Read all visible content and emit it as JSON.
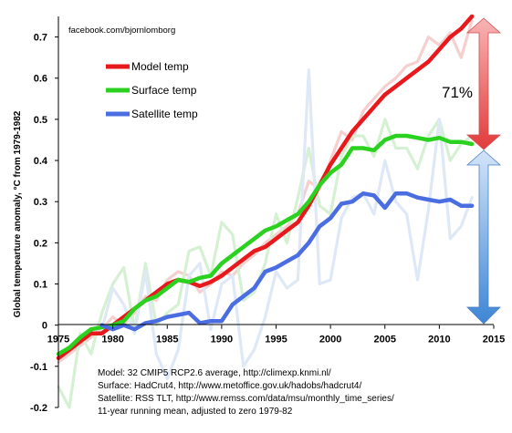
{
  "chart_data": {
    "type": "line",
    "title": "",
    "ylabel": "Global tempearture anomaly, °C from 1979-1982",
    "xlim": [
      1975,
      2015
    ],
    "ylim": [
      -0.2,
      0.75
    ],
    "xticks": [
      1975,
      1980,
      1985,
      1990,
      1995,
      2000,
      2005,
      2010,
      2015
    ],
    "yticks": [
      -0.2,
      -0.1,
      0,
      0.1,
      0.2,
      0.3,
      0.4,
      0.5,
      0.6,
      0.7
    ],
    "ytick_labels": [
      "-0.2",
      "-0.1",
      "0",
      "0.1",
      "0.2",
      "0.3",
      "0.4",
      "0.5",
      "0.6",
      "0.7"
    ],
    "xtick_labels": [
      "1975",
      "1980",
      "1985",
      "1990",
      "1995",
      "2000",
      "2005",
      "2010",
      "2015"
    ],
    "legend_position": "top-left",
    "series": [
      {
        "name": "Model temp",
        "color": "#e8191c",
        "x": [
          1975,
          1976,
          1977,
          1978,
          1979,
          1980,
          1981,
          1982,
          1983,
          1984,
          1985,
          1986,
          1987,
          1988,
          1989,
          1990,
          1991,
          1992,
          1993,
          1994,
          1995,
          1996,
          1997,
          1998,
          1999,
          2000,
          2001,
          2002,
          2003,
          2004,
          2005,
          2006,
          2007,
          2008,
          2009,
          2010,
          2011,
          2012,
          2013
        ],
        "y": [
          -0.08,
          -0.06,
          -0.04,
          -0.02,
          -0.02,
          0.0,
          0.02,
          0.04,
          0.06,
          0.08,
          0.1,
          0.11,
          0.105,
          0.095,
          0.105,
          0.12,
          0.14,
          0.16,
          0.18,
          0.19,
          0.21,
          0.23,
          0.25,
          0.29,
          0.34,
          0.39,
          0.43,
          0.47,
          0.5,
          0.53,
          0.56,
          0.58,
          0.6,
          0.62,
          0.64,
          0.67,
          0.7,
          0.72,
          0.75
        ]
      },
      {
        "name": "Surface temp",
        "color": "#2ad21f",
        "x": [
          1975,
          1976,
          1977,
          1978,
          1979,
          1980,
          1981,
          1982,
          1983,
          1984,
          1985,
          1986,
          1987,
          1988,
          1989,
          1990,
          1991,
          1992,
          1993,
          1994,
          1995,
          1996,
          1997,
          1998,
          1999,
          2000,
          2001,
          2002,
          2003,
          2004,
          2005,
          2006,
          2007,
          2008,
          2009,
          2010,
          2011,
          2012,
          2013
        ],
        "y": [
          -0.07,
          -0.055,
          -0.03,
          -0.01,
          -0.005,
          0.0,
          0.01,
          0.04,
          0.06,
          0.07,
          0.09,
          0.11,
          0.105,
          0.115,
          0.12,
          0.15,
          0.17,
          0.19,
          0.21,
          0.23,
          0.24,
          0.255,
          0.27,
          0.3,
          0.34,
          0.37,
          0.39,
          0.43,
          0.43,
          0.425,
          0.45,
          0.46,
          0.46,
          0.455,
          0.45,
          0.455,
          0.445,
          0.445,
          0.44
        ]
      },
      {
        "name": "Satellite temp",
        "color": "#4a6de2",
        "x": [
          1979,
          1980,
          1981,
          1982,
          1983,
          1984,
          1985,
          1986,
          1987,
          1988,
          1989,
          1990,
          1991,
          1992,
          1993,
          1994,
          1995,
          1996,
          1997,
          1998,
          1999,
          2000,
          2001,
          2002,
          2003,
          2004,
          2005,
          2006,
          2007,
          2008,
          2009,
          2010,
          2011,
          2012,
          2013
        ],
        "y": [
          0.0,
          -0.01,
          0.0,
          -0.01,
          0.005,
          0.01,
          0.02,
          0.025,
          0.03,
          0.005,
          0.01,
          0.01,
          0.05,
          0.07,
          0.09,
          0.13,
          0.14,
          0.155,
          0.17,
          0.2,
          0.24,
          0.26,
          0.295,
          0.3,
          0.32,
          0.315,
          0.285,
          0.32,
          0.32,
          0.31,
          0.305,
          0.3,
          0.305,
          0.29,
          0.29
        ]
      }
    ],
    "background_series": [
      {
        "name": "Model annual",
        "color": "#f6cfcf",
        "x": [
          1975,
          1976,
          1977,
          1978,
          1979,
          1980,
          1981,
          1982,
          1983,
          1984,
          1985,
          1986,
          1987,
          1988,
          1989,
          1990,
          1991,
          1992,
          1993,
          1994,
          1995,
          1996,
          1997,
          1998,
          1999,
          2000,
          2001,
          2002,
          2003,
          2004,
          2005,
          2006,
          2007,
          2008,
          2009,
          2010,
          2011,
          2012,
          2013
        ],
        "y": [
          -0.09,
          -0.07,
          -0.05,
          -0.03,
          -0.01,
          0.02,
          0.0,
          0.03,
          0.07,
          0.06,
          0.11,
          0.13,
          0.12,
          0.08,
          0.1,
          0.13,
          0.12,
          0.15,
          0.17,
          0.2,
          0.22,
          0.24,
          0.27,
          0.35,
          0.33,
          0.4,
          0.47,
          0.45,
          0.52,
          0.55,
          0.58,
          0.6,
          0.63,
          0.64,
          0.7,
          0.68,
          0.71,
          0.65,
          0.74
        ]
      },
      {
        "name": "Surface annual",
        "color": "#d5f0d2",
        "x": [
          1975,
          1976,
          1977,
          1978,
          1979,
          1980,
          1981,
          1982,
          1983,
          1984,
          1985,
          1986,
          1987,
          1988,
          1989,
          1990,
          1991,
          1992,
          1993,
          1994,
          1995,
          1996,
          1997,
          1998,
          1999,
          2000,
          2001,
          2002,
          2003,
          2004,
          2005,
          2006,
          2007,
          2008,
          2009,
          2010,
          2011,
          2012,
          2013
        ],
        "y": [
          -0.15,
          -0.2,
          -0.02,
          -0.07,
          0.03,
          0.1,
          0.14,
          -0.01,
          0.15,
          0.0,
          0.03,
          0.05,
          0.18,
          0.19,
          0.12,
          0.25,
          0.22,
          0.06,
          0.08,
          0.15,
          0.27,
          0.2,
          0.31,
          0.43,
          0.29,
          0.27,
          0.41,
          0.46,
          0.46,
          0.41,
          0.5,
          0.43,
          0.43,
          0.38,
          0.46,
          0.5,
          0.4,
          0.44,
          0.46
        ]
      },
      {
        "name": "Satellite annual",
        "color": "#dfe8f6",
        "x": [
          1979,
          1980,
          1981,
          1982,
          1983,
          1984,
          1985,
          1986,
          1987,
          1988,
          1989,
          1990,
          1991,
          1992,
          1993,
          1994,
          1995,
          1996,
          1997,
          1998,
          1999,
          2000,
          2001,
          2002,
          2003,
          2004,
          2005,
          2006,
          2007,
          2008,
          2009,
          2010,
          2011,
          2012,
          2013
        ],
        "y": [
          -0.01,
          0.09,
          0.05,
          -0.02,
          0.13,
          -0.07,
          -0.13,
          -0.06,
          0.12,
          0.15,
          -0.01,
          0.1,
          0.12,
          -0.1,
          -0.06,
          0.02,
          0.13,
          0.09,
          0.11,
          0.62,
          0.1,
          0.11,
          0.26,
          0.31,
          0.32,
          0.27,
          0.4,
          0.3,
          0.27,
          0.11,
          0.28,
          0.5,
          0.21,
          0.24,
          0.31
        ]
      }
    ],
    "arrows": [
      {
        "name": "model-gap-arrow",
        "color_top": "#f5a0a0",
        "color_bottom": "#e44040",
        "x": 2014.5,
        "y_from": 0.745,
        "y_to": 0.44
      },
      {
        "name": "observed-gap-arrow",
        "color_top": "#c9ddf6",
        "color_bottom": "#4a8ed8",
        "x": 2014.5,
        "y_from": 0.44,
        "y_to": 0.0
      }
    ]
  },
  "watermark": "facebook.com/bjornlomborg",
  "gap_percent_label": "71%",
  "source_notes": [
    "Model: 32 CMIP5 RCP2.6 average, http://climexp.knmi.nl/",
    "Surface: HadCrut4, http://www.metoffice.gov.uk/hadobs/hadcrut4/",
    "Satellite: RSS TLT, http://www.remss.com/data/msu/monthly_time_series/",
    "11-year running mean, adjusted to zero 1979-82"
  ]
}
